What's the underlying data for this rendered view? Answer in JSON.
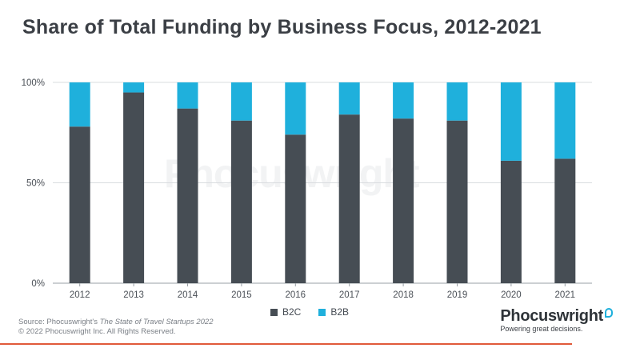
{
  "title": "Share of Total Funding by Business Focus, 2012-2021",
  "source_prefix": "Source: Phocuswright's ",
  "source_title": "The State of Travel Startups 2022",
  "copyright": "© 2022 Phocuswright Inc. All Rights Reserved.",
  "brand": {
    "name": "Phocuswright",
    "tagline": "Powering great decisions."
  },
  "watermark": "Phocuswright",
  "colors": {
    "B2C": "#464d54",
    "B2B": "#1fb0dc",
    "accent_line": "#e05a3a"
  },
  "chart_data": {
    "type": "bar",
    "stacked": true,
    "categories": [
      "2012",
      "2013",
      "2014",
      "2015",
      "2016",
      "2017",
      "2018",
      "2019",
      "2020",
      "2021"
    ],
    "series": [
      {
        "name": "B2C",
        "values": [
          78,
          95,
          87,
          81,
          74,
          84,
          82,
          81,
          61,
          62
        ]
      },
      {
        "name": "B2B",
        "values": [
          22,
          5,
          13,
          19,
          26,
          16,
          18,
          19,
          39,
          38
        ]
      }
    ],
    "ylim": [
      0,
      100
    ],
    "yticks": [
      "0%",
      "50%",
      "100%"
    ],
    "ytick_values": [
      0,
      50,
      100
    ],
    "grid": true,
    "legend_position": "bottom"
  }
}
